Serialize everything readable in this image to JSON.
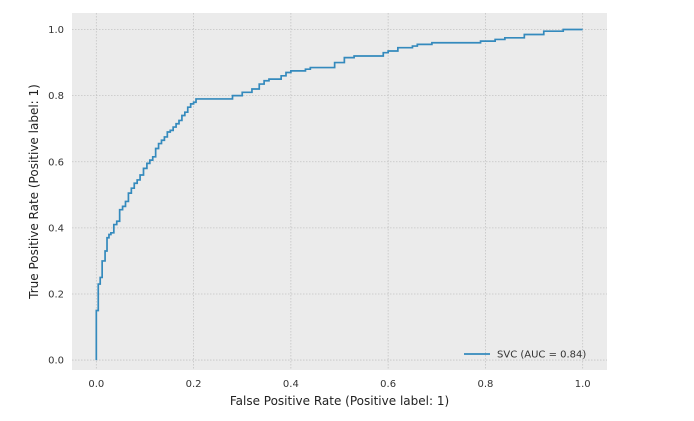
{
  "chart_data": {
    "type": "line",
    "title": "",
    "xlabel": "False Positive Rate (Positive label: 1)",
    "ylabel": "True Positive Rate (Positive label: 1)",
    "xlim": [
      -0.05,
      1.05
    ],
    "ylim": [
      -0.03,
      1.05
    ],
    "xticks": [
      0.0,
      0.2,
      0.4,
      0.6,
      0.8,
      1.0
    ],
    "yticks": [
      0.0,
      0.2,
      0.4,
      0.6,
      0.8,
      1.0
    ],
    "xtick_labels": [
      "0.0",
      "0.2",
      "0.4",
      "0.6",
      "0.8",
      "1.0"
    ],
    "ytick_labels": [
      "0.0",
      "0.2",
      "0.4",
      "0.6",
      "0.8",
      "1.0"
    ],
    "grid": true,
    "legend_position": "lower-right",
    "colors": {
      "background": "#ebebeb",
      "grid": "#c4c4c4",
      "line": "#348abd"
    },
    "series": [
      {
        "name": "SVC (AUC = 0.84)",
        "x": [
          0.0,
          0.0,
          0.004,
          0.004,
          0.008,
          0.008,
          0.012,
          0.012,
          0.018,
          0.018,
          0.022,
          0.022,
          0.026,
          0.026,
          0.03,
          0.03,
          0.036,
          0.036,
          0.042,
          0.042,
          0.048,
          0.048,
          0.054,
          0.054,
          0.06,
          0.06,
          0.066,
          0.066,
          0.072,
          0.072,
          0.078,
          0.078,
          0.084,
          0.084,
          0.09,
          0.09,
          0.097,
          0.097,
          0.104,
          0.104,
          0.11,
          0.11,
          0.116,
          0.116,
          0.122,
          0.122,
          0.128,
          0.128,
          0.134,
          0.134,
          0.14,
          0.14,
          0.146,
          0.146,
          0.152,
          0.152,
          0.158,
          0.158,
          0.164,
          0.164,
          0.17,
          0.17,
          0.176,
          0.176,
          0.182,
          0.182,
          0.188,
          0.188,
          0.194,
          0.194,
          0.2,
          0.2,
          0.205,
          0.205,
          0.23,
          0.23,
          0.24,
          0.24,
          0.28,
          0.28,
          0.3,
          0.3,
          0.32,
          0.32,
          0.335,
          0.335,
          0.345,
          0.345,
          0.355,
          0.355,
          0.38,
          0.38,
          0.39,
          0.39,
          0.4,
          0.4,
          0.43,
          0.43,
          0.44,
          0.44,
          0.49,
          0.49,
          0.51,
          0.51,
          0.53,
          0.53,
          0.59,
          0.59,
          0.6,
          0.6,
          0.62,
          0.62,
          0.65,
          0.65,
          0.66,
          0.66,
          0.69,
          0.69,
          0.79,
          0.79,
          0.82,
          0.82,
          0.84,
          0.84,
          0.88,
          0.88,
          0.92,
          0.92,
          0.96,
          0.96,
          1.0
        ],
        "y": [
          0.0,
          0.15,
          0.15,
          0.23,
          0.23,
          0.25,
          0.25,
          0.3,
          0.3,
          0.33,
          0.33,
          0.37,
          0.37,
          0.38,
          0.38,
          0.385,
          0.385,
          0.41,
          0.41,
          0.42,
          0.42,
          0.455,
          0.455,
          0.465,
          0.465,
          0.48,
          0.48,
          0.505,
          0.505,
          0.52,
          0.52,
          0.535,
          0.535,
          0.545,
          0.545,
          0.56,
          0.56,
          0.58,
          0.58,
          0.595,
          0.595,
          0.605,
          0.605,
          0.615,
          0.615,
          0.64,
          0.64,
          0.655,
          0.655,
          0.665,
          0.665,
          0.675,
          0.675,
          0.69,
          0.69,
          0.695,
          0.695,
          0.705,
          0.705,
          0.715,
          0.715,
          0.725,
          0.725,
          0.74,
          0.74,
          0.75,
          0.75,
          0.765,
          0.765,
          0.775,
          0.775,
          0.78,
          0.78,
          0.79,
          0.79,
          0.79,
          0.79,
          0.79,
          0.79,
          0.8,
          0.8,
          0.81,
          0.81,
          0.82,
          0.82,
          0.835,
          0.835,
          0.845,
          0.845,
          0.85,
          0.85,
          0.86,
          0.86,
          0.87,
          0.87,
          0.875,
          0.875,
          0.88,
          0.88,
          0.885,
          0.885,
          0.9,
          0.9,
          0.915,
          0.915,
          0.92,
          0.92,
          0.93,
          0.93,
          0.935,
          0.935,
          0.945,
          0.945,
          0.95,
          0.95,
          0.955,
          0.955,
          0.96,
          0.96,
          0.965,
          0.965,
          0.97,
          0.97,
          0.975,
          0.975,
          0.985,
          0.985,
          0.995,
          0.995,
          1.0,
          1.0
        ]
      }
    ]
  }
}
